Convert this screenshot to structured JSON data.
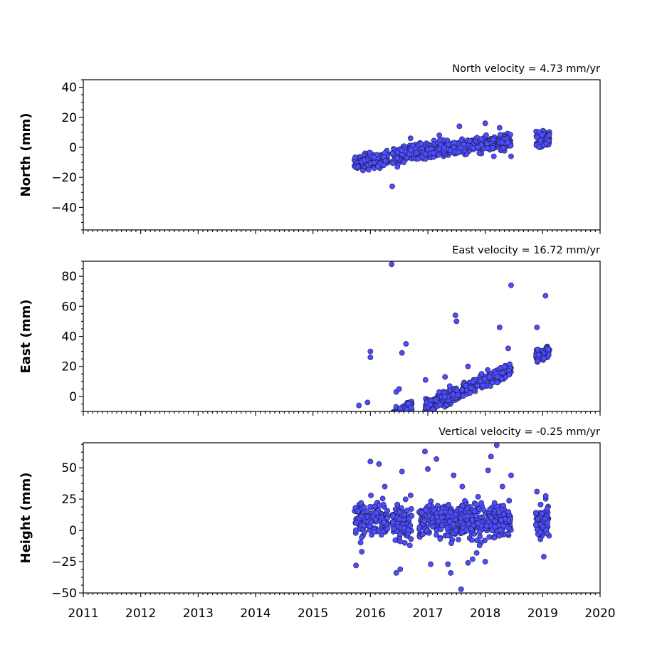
{
  "chart_data": [
    {
      "type": "scatter",
      "title": "North velocity = 4.73 mm/yr",
      "xlabel": "",
      "ylabel": "North (mm)",
      "xlim": [
        2011,
        2020
      ],
      "ylim": [
        -55,
        45
      ],
      "yticks": [
        -40,
        -20,
        0,
        20,
        40
      ],
      "xticks": [
        2011,
        2012,
        2013,
        2014,
        2015,
        2016,
        2017,
        2018,
        2019,
        2020
      ],
      "grid": false,
      "color": "#4d4dff",
      "trend": {
        "velocity": 4.73,
        "spread": 3.5,
        "clusters": [
          {
            "x0": 2015.72,
            "x1": 2016.3,
            "offset": -3
          },
          {
            "x0": 2016.38,
            "x1": 2018.45,
            "offset": -1
          },
          {
            "x0": 2018.88,
            "x1": 2019.12,
            "offset": -3
          }
        ]
      },
      "points": [
        [
          2015.78,
          -13
        ],
        [
          2015.97,
          -15
        ],
        [
          2016.38,
          -26
        ],
        [
          2016.47,
          -13
        ],
        [
          2016.58,
          -10
        ],
        [
          2018.15,
          -6
        ],
        [
          2018.45,
          -6
        ],
        [
          2017.55,
          14
        ],
        [
          2018.0,
          16
        ],
        [
          2018.25,
          13
        ],
        [
          2016.55,
          -2
        ],
        [
          2017.2,
          8
        ],
        [
          2016.7,
          6
        ]
      ]
    },
    {
      "type": "scatter",
      "title": "East velocity = 16.72 mm/yr",
      "xlabel": "",
      "ylabel": "East (mm)",
      "xlim": [
        2011,
        2020
      ],
      "ylim": [
        -10,
        90
      ],
      "yticks": [
        0,
        20,
        40,
        60,
        80
      ],
      "xticks": [
        2011,
        2012,
        2013,
        2014,
        2015,
        2016,
        2017,
        2018,
        2019,
        2020
      ],
      "grid": false,
      "color": "#4d4dff",
      "trend": {
        "velocity": 16.72,
        "spread": 3.2,
        "clusters": [
          {
            "x0": 2015.72,
            "x1": 2016.3,
            "offset": -2
          },
          {
            "x0": 2016.38,
            "x1": 2016.72,
            "offset": 3
          },
          {
            "x0": 2016.95,
            "x1": 2018.45,
            "offset": -1
          },
          {
            "x0": 2018.88,
            "x1": 2019.12,
            "offset": 0
          }
        ]
      },
      "points": [
        [
          2016.37,
          88
        ],
        [
          2016.0,
          30
        ],
        [
          2016.0,
          26
        ],
        [
          2015.8,
          -6
        ],
        [
          2015.95,
          -4
        ],
        [
          2016.62,
          35
        ],
        [
          2016.55,
          29
        ],
        [
          2017.48,
          54
        ],
        [
          2017.5,
          50
        ],
        [
          2018.45,
          74
        ],
        [
          2016.96,
          11
        ],
        [
          2017.3,
          13
        ],
        [
          2017.7,
          20
        ],
        [
          2018.4,
          32
        ],
        [
          2018.9,
          46
        ],
        [
          2019.05,
          67
        ],
        [
          2018.25,
          46
        ],
        [
          2016.45,
          3
        ],
        [
          2016.5,
          5
        ]
      ]
    },
    {
      "type": "scatter",
      "title": "Vertical velocity = -0.25 mm/yr",
      "xlabel": "",
      "ylabel": "Height (mm)",
      "xlim": [
        2011,
        2020
      ],
      "ylim": [
        -50,
        70
      ],
      "yticks": [
        -50,
        -25,
        0,
        25,
        50
      ],
      "xticks": [
        2011,
        2012,
        2013,
        2014,
        2015,
        2016,
        2017,
        2018,
        2019,
        2020
      ],
      "grid": false,
      "color": "#4d4dff",
      "trend": {
        "velocity": -0.25,
        "spread": 10,
        "clusters": [
          {
            "x0": 2015.72,
            "x1": 2016.3,
            "offset": 8
          },
          {
            "x0": 2016.38,
            "x1": 2016.72,
            "offset": 5
          },
          {
            "x0": 2016.85,
            "x1": 2018.45,
            "offset": 8
          },
          {
            "x0": 2018.88,
            "x1": 2019.12,
            "offset": 8
          }
        ]
      },
      "points": [
        [
          2015.75,
          -28
        ],
        [
          2015.85,
          -17
        ],
        [
          2016.0,
          55
        ],
        [
          2016.15,
          53
        ],
        [
          2016.25,
          35
        ],
        [
          2016.45,
          -34
        ],
        [
          2016.52,
          -31
        ],
        [
          2016.55,
          47
        ],
        [
          2016.95,
          63
        ],
        [
          2017.0,
          49
        ],
        [
          2017.05,
          -27
        ],
        [
          2017.15,
          57
        ],
        [
          2017.35,
          -27
        ],
        [
          2017.4,
          -34
        ],
        [
          2017.45,
          44
        ],
        [
          2017.58,
          -47
        ],
        [
          2017.7,
          -26
        ],
        [
          2017.78,
          -23
        ],
        [
          2017.85,
          -18
        ],
        [
          2018.0,
          -25
        ],
        [
          2018.05,
          48
        ],
        [
          2018.1,
          59
        ],
        [
          2018.2,
          68
        ],
        [
          2018.3,
          35
        ],
        [
          2018.45,
          44
        ],
        [
          2018.9,
          31
        ],
        [
          2019.02,
          -21
        ],
        [
          2016.7,
          28
        ],
        [
          2017.6,
          35
        ],
        [
          2016.6,
          -10
        ],
        [
          2017.9,
          -12
        ]
      ]
    }
  ]
}
